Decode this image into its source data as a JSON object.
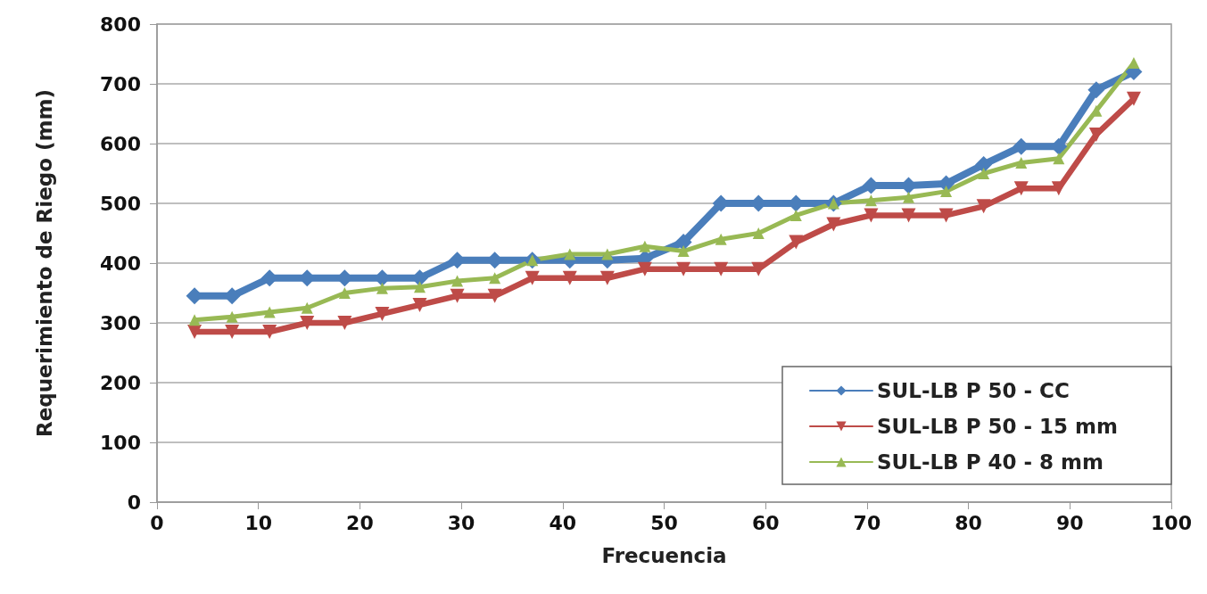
{
  "chart_data": {
    "type": "line",
    "xlabel": "Frecuencia",
    "ylabel": "Requerimiento de Riego (mm)",
    "x": [
      3.7,
      7.4,
      11.1,
      14.8,
      18.5,
      22.2,
      25.9,
      29.6,
      33.3,
      37,
      40.7,
      44.4,
      48.1,
      51.9,
      55.6,
      59.3,
      63,
      66.7,
      70.4,
      74.1,
      77.8,
      81.5,
      85.2,
      88.9,
      92.6,
      96.3
    ],
    "series": [
      {
        "name": "SUL-LB P 50 - CC",
        "color": "#4a7ebb",
        "marker": "diamond",
        "values": [
          345,
          345,
          375,
          375,
          375,
          375,
          375,
          405,
          405,
          405,
          405,
          405,
          408,
          435,
          500,
          500,
          500,
          500,
          530,
          530,
          533,
          565,
          595,
          595,
          690,
          720
        ]
      },
      {
        "name": "SUL-LB P 50 - 15 mm",
        "color": "#be4b48",
        "marker": "triangle_down",
        "values": [
          285,
          285,
          285,
          300,
          300,
          315,
          330,
          345,
          345,
          375,
          375,
          375,
          390,
          390,
          390,
          390,
          435,
          465,
          480,
          480,
          480,
          495,
          525,
          525,
          615,
          675
        ]
      },
      {
        "name": "SUL-LB P 40 - 8 mm",
        "color": "#98b954",
        "marker": "triangle",
        "values": [
          305,
          310,
          318,
          325,
          350,
          358,
          360,
          370,
          375,
          405,
          415,
          415,
          428,
          420,
          440,
          450,
          480,
          500,
          505,
          510,
          520,
          550,
          568,
          575,
          655,
          735
        ]
      }
    ],
    "xlim": [
      0,
      100
    ],
    "xticks": [
      0,
      10,
      20,
      30,
      40,
      50,
      60,
      70,
      80,
      90,
      100
    ],
    "ylim": [
      0,
      800
    ],
    "yticks": [
      0,
      100,
      200,
      300,
      400,
      500,
      600,
      700,
      800
    ],
    "grid": "y",
    "legend": "bottom right",
    "line_style": "solid"
  }
}
